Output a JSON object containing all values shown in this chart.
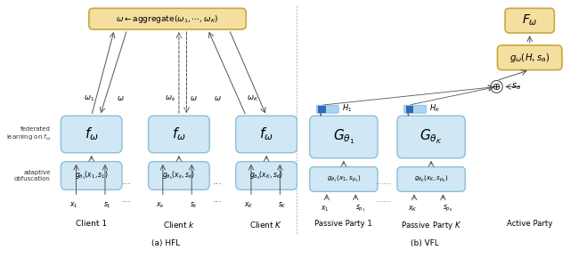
{
  "fig_width": 6.4,
  "fig_height": 2.9,
  "dpi": 100,
  "bg_color": "#ffffff",
  "box_light_blue": "#d0e8f5",
  "box_light_blue_edge": "#90bcd8",
  "box_light_orange": "#f5dfa0",
  "box_light_orange_edge": "#c8a840",
  "box_dark_blue": "#4a90d0",
  "box_dark_blue_small": "#6aaee0",
  "caption_a": "(a) HFL",
  "caption_b": "(b) VFL",
  "label_fl": "federated\nlearning on $f_\\omega$",
  "label_ao": "adaptive\nobfuscation",
  "agg_text": "$\\omega \\leftarrow \\mathrm{aggregate}(\\omega_1, \\cdots, \\omega_K)$",
  "client_labels": [
    "Client 1",
    "Client $k$",
    "Client $K$"
  ],
  "party_labels": [
    "Passive Party 1",
    "Passive Party $K$",
    "Active Party"
  ],
  "fw_text": "$f_\\omega$",
  "G_texts": [
    "$G_{\\theta_1}$",
    "$G_{\\theta_K}$"
  ],
  "g_texts_hfl": [
    "$g_{\\theta_1}(x_1, s_1)$",
    "$g_{\\theta_k}(x_k, s_k)$",
    "$g_{\\theta_K}(x_K, s_K)$"
  ],
  "g_texts_vfl": [
    "$g_{\\theta_1}(x_1, s_{p_1})$",
    "$g_{\\theta_K}(x_K, s_{p_K})$"
  ],
  "Fw_text": "$F_\\omega$",
  "gw_text": "$g_\\omega(H, s_a)$",
  "sa_text": "$s_a$",
  "H1_text": "$H_1$",
  "HK_text": "$H_K$",
  "omega_labels": [
    "$\\omega_1$",
    "$\\omega$",
    "$\\omega_k$",
    "$\\omega$",
    "$\\omega$",
    "$\\omega_K$"
  ],
  "input_labels_c1": [
    "$x_1$",
    "$s_1$"
  ],
  "input_labels_ck": [
    "$x_k$",
    "$s_k$"
  ],
  "input_labels_cK": [
    "$x_K$",
    "$s_K$"
  ],
  "input_labels_p1": [
    "$x_1$",
    "$s_{p_1}$"
  ],
  "input_labels_pK": [
    "$x_K$",
    "$s_{p_K}$"
  ]
}
